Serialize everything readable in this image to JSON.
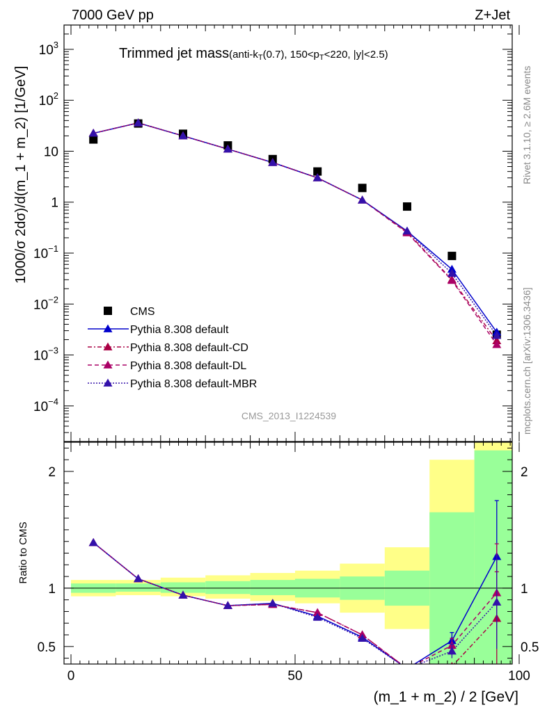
{
  "header": {
    "left": "7000 GeV pp",
    "right": "Z+Jet"
  },
  "side_labels": {
    "rivet": "Rivet 3.1.10, ≥ 2.6M events",
    "mcplots": "mcplots.cern.ch [arXiv:1306.3436]"
  },
  "watermark": "CMS_2013_I1224539",
  "colors": {
    "cms": "#000000",
    "default": "#0000cc",
    "cd": "#aa0044",
    "dl": "#aa0066",
    "mbr": "#3311aa",
    "band_inner": "#99ff99",
    "band_outer": "#ffff88"
  },
  "chart_data": [
    {
      "type": "scatter",
      "title": "Trimmed jet mass",
      "title_suffix": "(anti-k_T(0.7), 150<p_T<220, |y|<2.5)",
      "ylabel": "1000/σ 2dσ)/d(m_1 + m_2) [1/GeV]",
      "yscale": "log",
      "xlim": [
        0,
        100
      ],
      "ylim": [
        2e-05,
        3000
      ],
      "yticks": [
        {
          "v": 0.0001,
          "m": "10",
          "e": "−4"
        },
        {
          "v": 0.001,
          "m": "10",
          "e": "−3"
        },
        {
          "v": 0.01,
          "m": "10",
          "e": "−2"
        },
        {
          "v": 0.1,
          "m": "10",
          "e": "−1"
        },
        {
          "v": 1,
          "m": "1",
          "e": ""
        },
        {
          "v": 10,
          "m": "10",
          "e": ""
        },
        {
          "v": 100,
          "m": "10",
          "e": "2"
        },
        {
          "v": 1000,
          "m": "10",
          "e": "3"
        }
      ],
      "legend_position": "bottom-left",
      "x": [
        5,
        15,
        25,
        35,
        45,
        55,
        65,
        75,
        85,
        95
      ],
      "series": [
        {
          "name": "CMS",
          "key": "cms",
          "values": [
            17,
            35,
            22,
            13,
            7.0,
            4.0,
            1.9,
            0.82,
            0.088,
            0.0025
          ]
        },
        {
          "name": "Pythia 8.308 default",
          "key": "default",
          "values": [
            22.5,
            36,
            20,
            11,
            6.0,
            3.0,
            1.1,
            0.27,
            0.048,
            0.0028
          ]
        },
        {
          "name": "Pythia 8.308 default-CD",
          "key": "cd",
          "values": [
            22.5,
            36,
            20,
            11,
            6.0,
            3.0,
            1.1,
            0.26,
            0.03,
            0.0019
          ]
        },
        {
          "name": "Pythia 8.308 default-DL",
          "key": "dl",
          "values": [
            22.5,
            36,
            20,
            11,
            6.0,
            3.0,
            1.1,
            0.25,
            0.029,
            0.0016
          ]
        },
        {
          "name": "Pythia 8.308 default-MBR",
          "key": "mbr",
          "values": [
            22.5,
            36,
            20,
            11,
            6.0,
            3.0,
            1.1,
            0.27,
            0.04,
            0.0024
          ]
        }
      ]
    },
    {
      "type": "line",
      "ylabel": "Ratio to CMS",
      "xlabel": "(m_1 + m_2) / 2 [GeV]",
      "xlim": [
        0,
        100
      ],
      "ylim": [
        0.35,
        2.25
      ],
      "xticks": [
        0,
        50,
        100
      ],
      "yticks": [
        0.5,
        1,
        2
      ],
      "bands": {
        "edges": [
          0,
          10,
          20,
          30,
          40,
          50,
          60,
          70,
          80,
          90,
          100
        ],
        "inner": [
          [
            0.96,
            1.04
          ],
          [
            0.97,
            1.04
          ],
          [
            0.96,
            1.05
          ],
          [
            0.95,
            1.06
          ],
          [
            0.94,
            1.07
          ],
          [
            0.92,
            1.08
          ],
          [
            0.9,
            1.1
          ],
          [
            0.85,
            1.15
          ],
          [
            0.35,
            1.65
          ],
          [
            0.35,
            2.18
          ]
        ],
        "outer": [
          [
            0.93,
            1.07
          ],
          [
            0.94,
            1.07
          ],
          [
            0.93,
            1.09
          ],
          [
            0.91,
            1.11
          ],
          [
            0.89,
            1.13
          ],
          [
            0.87,
            1.15
          ],
          [
            0.79,
            1.21
          ],
          [
            0.65,
            1.35
          ],
          [
            0.35,
            2.1
          ],
          [
            0.35,
            2.25
          ]
        ]
      },
      "x": [
        5,
        15,
        25,
        35,
        45,
        55,
        65,
        75,
        85,
        95
      ],
      "series": [
        {
          "name": "Pythia 8.308 default",
          "key": "default",
          "values": [
            1.39,
            1.08,
            0.94,
            0.85,
            0.87,
            0.76,
            0.58,
            0.31,
            0.55,
            1.27
          ],
          "err": [
            0,
            0,
            0,
            0,
            0,
            0,
            0,
            0,
            0.07,
            0.48
          ]
        },
        {
          "name": "Pythia 8.308 default-CD",
          "key": "cd",
          "values": [
            1.39,
            1.08,
            0.94,
            0.85,
            0.86,
            0.79,
            0.6,
            0.31,
            0.33,
            0.74
          ],
          "err": [
            0,
            0,
            0,
            0,
            0,
            0,
            0,
            0,
            0,
            0.4
          ]
        },
        {
          "name": "Pythia 8.308 default-DL",
          "key": "dl",
          "values": [
            1.39,
            1.08,
            0.94,
            0.85,
            0.86,
            0.79,
            0.6,
            0.31,
            0.51,
            0.96
          ],
          "err": [
            0,
            0,
            0,
            0,
            0,
            0,
            0,
            0,
            0.06,
            0.42
          ]
        },
        {
          "name": "Pythia 8.308 default-MBR",
          "key": "mbr",
          "values": [
            1.39,
            1.08,
            0.94,
            0.85,
            0.87,
            0.75,
            0.57,
            0.31,
            0.46,
            0.88
          ],
          "err": [
            0,
            0,
            0,
            0,
            0,
            0,
            0,
            0,
            0.06,
            0.4
          ]
        }
      ]
    }
  ]
}
